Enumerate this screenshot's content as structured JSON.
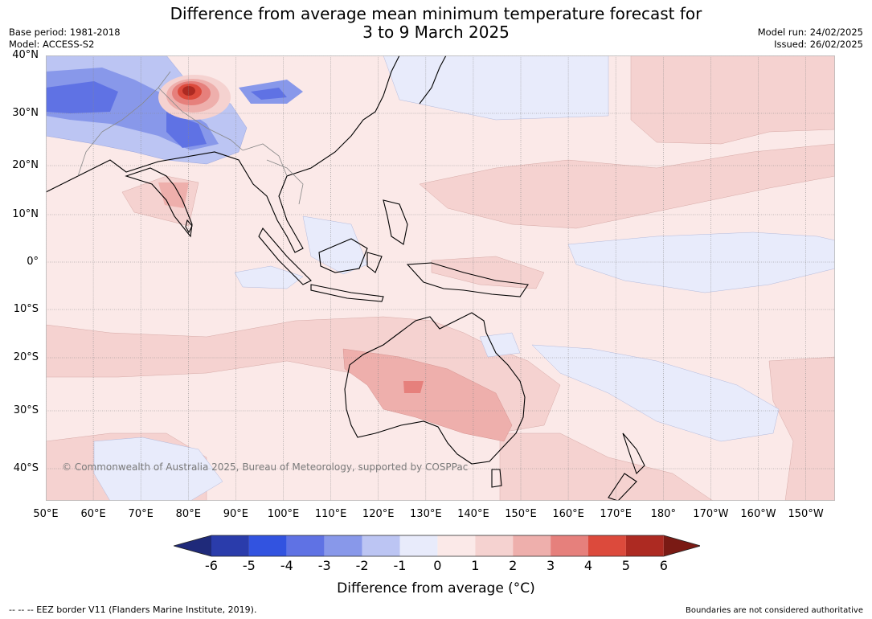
{
  "header": {
    "title_line1": "Difference from average mean minimum temperature forecast for",
    "title_line2": "3 to 9 March 2025",
    "base_period": "Base period: 1981-2018",
    "model": "Model: ACCESS-S2",
    "model_run": "Model run: 24/02/2025",
    "issued": "Issued: 26/02/2025"
  },
  "map": {
    "lat_labels": [
      "40°N",
      "30°N",
      "20°N",
      "10°N",
      "0°",
      "10°S",
      "20°S",
      "30°S",
      "40°S"
    ],
    "lon_labels": [
      "50°E",
      "60°E",
      "70°E",
      "80°E",
      "90°E",
      "100°E",
      "110°E",
      "120°E",
      "130°E",
      "140°E",
      "150°E",
      "160°E",
      "170°E",
      "180°",
      "170°W",
      "160°W",
      "150°W"
    ],
    "copyright": "© Commonwealth of Australia 2025, Bureau of Meteorology, supported by COSPPac"
  },
  "colorbar": {
    "ticks": [
      "-6",
      "-5",
      "-4",
      "-3",
      "-2",
      "-1",
      "0",
      "1",
      "2",
      "3",
      "4",
      "5",
      "6"
    ],
    "colors": [
      "#1f2a7a",
      "#2a3cab",
      "#3253e0",
      "#5f72e4",
      "#8898ea",
      "#bcc5f3",
      "#e8ebfb",
      "#fbe9e8",
      "#f5d2d0",
      "#eeafac",
      "#e6807c",
      "#dc4a3c",
      "#ad2a22",
      "#7a1a14"
    ],
    "label": "Difference from average (°C)"
  },
  "footer": {
    "eez_note": "--  --  -- EEZ border V11 (Flanders Marine Institute, 2019).",
    "disclaimer": "Boundaries are not considered authoritative"
  }
}
